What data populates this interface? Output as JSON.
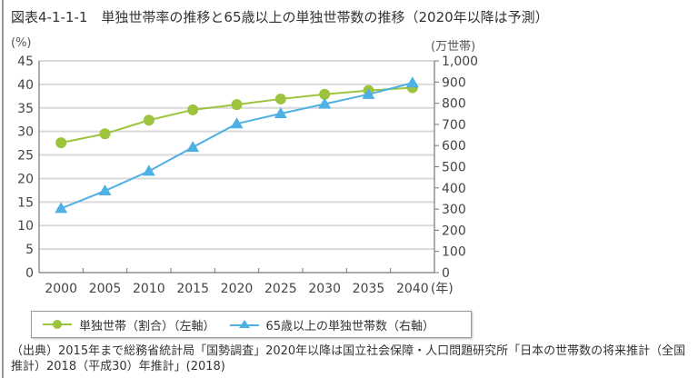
{
  "title": "図表4-1-1-1　単独世帯率の推移と65歳以上の単独世帯数の推移（2020年以降は予測）",
  "source_note": "（出典）2015年まで総務省統計局「国勢調査」2020年以降は国立社会保障・人口問題研究所「日本の世帯数の将来推計（全国推計）2018（平成30）年推計」(2018)",
  "chart_data": {
    "type": "line",
    "title": "単独世帯率の推移と65歳以上の単独世帯数の推移（2020年以降は予測）",
    "x": [
      "2000",
      "2005",
      "2010",
      "2015",
      "2020",
      "2025",
      "2030",
      "2035",
      "2040"
    ],
    "xlabel_suffix": "(年)",
    "ylabel_left": "(%)",
    "ylabel_right": "(万世帯)",
    "ylim_left": [
      0,
      45
    ],
    "ylim_right": [
      0,
      1000
    ],
    "yticks_left": [
      "0",
      "5",
      "10",
      "15",
      "20",
      "25",
      "30",
      "35",
      "40",
      "45"
    ],
    "yticks_right": [
      "0",
      "100",
      "200",
      "300",
      "400",
      "500",
      "600",
      "700",
      "800",
      "900",
      "1,000"
    ],
    "grid": true,
    "legend_position": "bottom",
    "series": [
      {
        "name": "単独世帯（割合）（左軸）",
        "axis": "left",
        "marker": "circle",
        "color": "#9dc43c",
        "values": [
          27.6,
          29.5,
          32.4,
          34.6,
          35.7,
          36.9,
          37.9,
          38.7,
          39.3
        ]
      },
      {
        "name": "65歳以上の単独世帯数（右軸）",
        "axis": "right",
        "marker": "triangle",
        "color": "#4fb0e3",
        "values": [
          303,
          386,
          479,
          592,
          703,
          751,
          796,
          842,
          896
        ]
      }
    ]
  }
}
